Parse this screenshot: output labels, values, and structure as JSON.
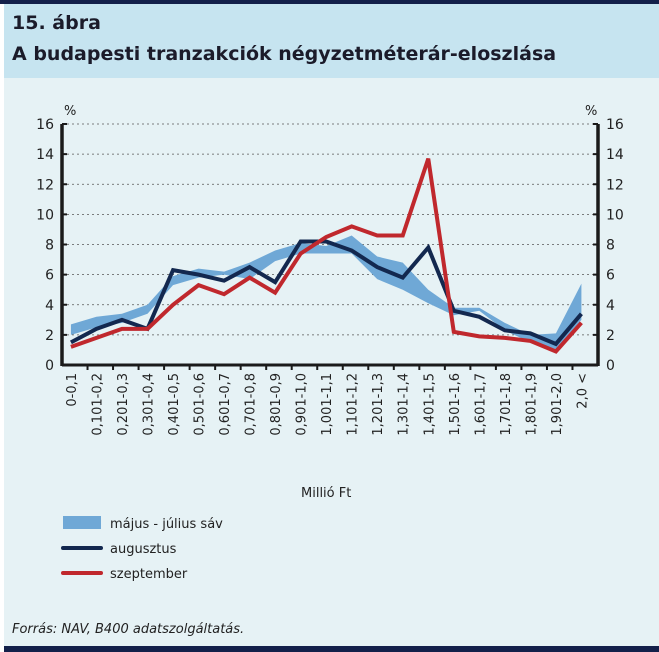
{
  "header": {
    "figure_number": "15. ábra",
    "title": "A budapesti tranzakciók négyzetméterár-eloszlása"
  },
  "source": "Forrás: NAV, B400 adatszolgáltatás.",
  "colors": {
    "band": "#6fa8d6",
    "augusztus": "#13284f",
    "szeptember": "#c0282d",
    "panel": "#e6f2f5",
    "title_bg": "#c6e4f0",
    "frame": "#13204a"
  },
  "chart_data": {
    "type": "line",
    "title": "A budapesti tranzakciók négyzetméterár-eloszlása",
    "xlabel": "Millió Ft",
    "ylabel_left": "%",
    "ylabel_right": "%",
    "ylim": [
      0,
      16
    ],
    "yticks": [
      0,
      2,
      4,
      6,
      8,
      10,
      12,
      14,
      16
    ],
    "grid": true,
    "legend_position": "bottom-left",
    "categories": [
      "0-0,1",
      "0,101-0,2",
      "0,201-0,3",
      "0,301-0,4",
      "0,401-0,5",
      "0,501-0,6",
      "0,601-0,7",
      "0,701-0,8",
      "0,801-0,9",
      "0,901-1,0",
      "1,001-1,1",
      "1,101-1,2",
      "1,201-1,3",
      "1,301-1,4",
      "1,401-1,5",
      "1,501-1,6",
      "1,601-1,7",
      "1,701-1,8",
      "1,801-1,9",
      "1,901-2,0",
      "2,0 <"
    ],
    "band": {
      "name": "május - július sáv",
      "lower": [
        2.0,
        2.5,
        2.8,
        3.4,
        5.3,
        5.8,
        6.0,
        5.7,
        6.9,
        7.4,
        7.4,
        7.4,
        5.7,
        5.0,
        4.1,
        3.3,
        3.6,
        2.3,
        1.5,
        1.0,
        3.0
      ],
      "upper": [
        2.7,
        3.2,
        3.4,
        4.0,
        5.9,
        6.4,
        6.2,
        6.8,
        7.6,
        8.1,
        7.9,
        8.6,
        7.2,
        6.8,
        5.0,
        3.8,
        3.8,
        2.8,
        2.0,
        2.1,
        5.4
      ]
    },
    "series": [
      {
        "name": "augusztus",
        "values": [
          1.5,
          2.4,
          3.0,
          2.4,
          6.3,
          6.0,
          5.6,
          6.5,
          5.5,
          8.2,
          8.2,
          7.6,
          6.5,
          5.8,
          7.8,
          3.6,
          3.2,
          2.3,
          2.1,
          1.4,
          3.4
        ]
      },
      {
        "name": "szeptember",
        "values": [
          1.2,
          1.8,
          2.4,
          2.4,
          4.0,
          5.3,
          4.7,
          5.8,
          4.8,
          7.4,
          8.5,
          9.2,
          8.6,
          8.6,
          13.7,
          2.2,
          1.9,
          1.8,
          1.6,
          0.9,
          2.8
        ]
      }
    ]
  }
}
